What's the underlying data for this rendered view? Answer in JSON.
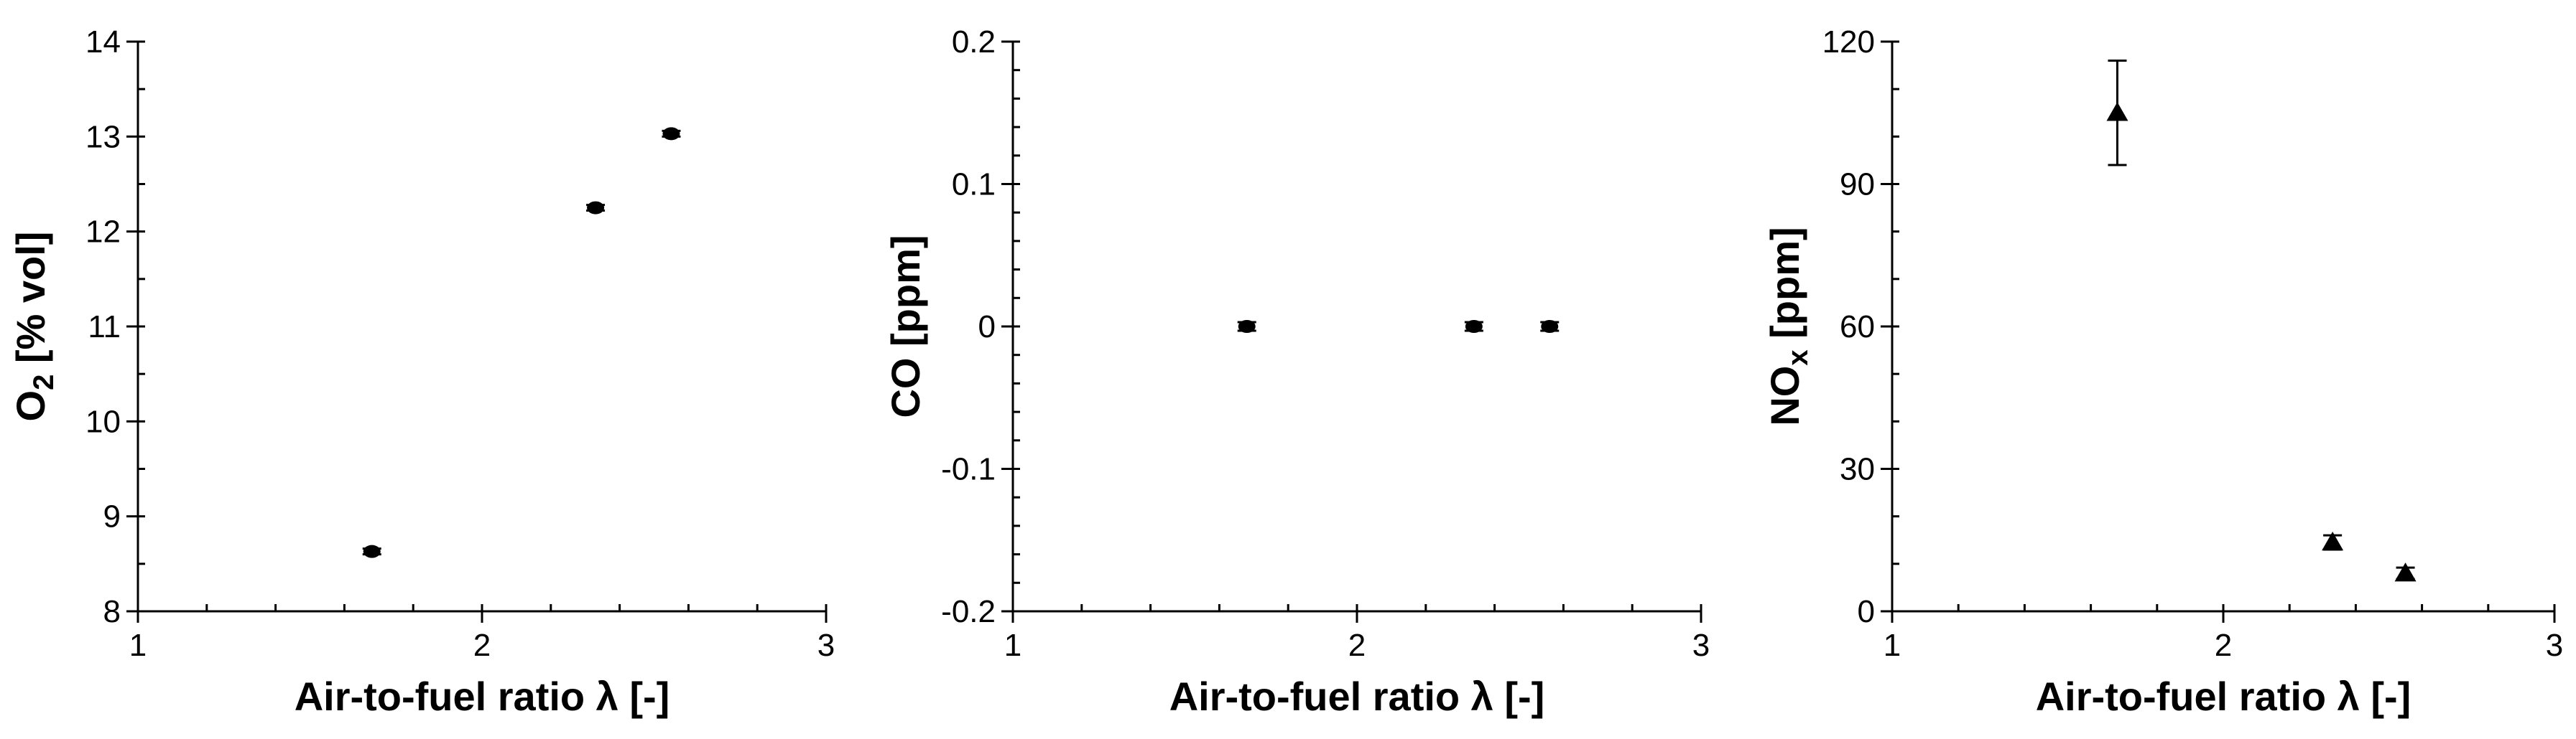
{
  "chart_data": [
    {
      "type": "scatter",
      "x_label": "Air-to-fuel ratio λ [-]",
      "y_label_main": "O",
      "y_label_sub": "2",
      "y_label_rest": " [% vol]",
      "xlim": [
        1,
        3
      ],
      "ylim": [
        8,
        14
      ],
      "x_ticks": [
        1,
        2,
        3
      ],
      "x_tick_labels": [
        "1",
        "2",
        "3"
      ],
      "y_ticks": [
        8,
        9,
        10,
        11,
        12,
        13,
        14
      ],
      "y_tick_labels": [
        "8",
        "9",
        "10",
        "11",
        "12",
        "13",
        "14"
      ],
      "x_minor_step": 0.2,
      "y_minor_step": 0.5,
      "marker": "circle",
      "grid": false,
      "points": [
        {
          "x": 1.68,
          "y": 8.63,
          "err": 0.03
        },
        {
          "x": 2.33,
          "y": 12.25,
          "err": 0.03
        },
        {
          "x": 2.55,
          "y": 13.03,
          "err": 0.03
        }
      ]
    },
    {
      "type": "scatter",
      "x_label": "Air-to-fuel ratio λ [-]",
      "y_label_main": "CO [ppm]",
      "y_label_sub": "",
      "y_label_rest": "",
      "xlim": [
        1,
        3
      ],
      "ylim": [
        -0.2,
        0.2
      ],
      "x_ticks": [
        1,
        2,
        3
      ],
      "x_tick_labels": [
        "1",
        "2",
        "3"
      ],
      "y_ticks": [
        -0.2,
        -0.1,
        0,
        0.1,
        0.2
      ],
      "y_tick_labels": [
        "-0.2",
        "-0.1",
        "0",
        "0.1",
        "0.2"
      ],
      "x_minor_step": 0.2,
      "y_minor_step": 0.02,
      "marker": "circle",
      "grid": false,
      "points": [
        {
          "x": 1.68,
          "y": 0,
          "err": 0.003
        },
        {
          "x": 2.34,
          "y": 0,
          "err": 0.003
        },
        {
          "x": 2.56,
          "y": 0,
          "err": 0.003
        }
      ]
    },
    {
      "type": "scatter",
      "x_label": "Air-to-fuel ratio λ [-]",
      "y_label_main": "NO",
      "y_label_sub": "x",
      "y_label_rest": " [ppm]",
      "xlim": [
        1,
        3
      ],
      "ylim": [
        0,
        120
      ],
      "x_ticks": [
        1,
        2,
        3
      ],
      "x_tick_labels": [
        "1",
        "2",
        "3"
      ],
      "y_ticks": [
        0,
        30,
        60,
        90,
        120
      ],
      "y_tick_labels": [
        "0",
        "30",
        "60",
        "90",
        "120"
      ],
      "x_minor_step": 0.2,
      "y_minor_step": 10,
      "marker": "triangle",
      "grid": false,
      "points": [
        {
          "x": 1.68,
          "y": 105,
          "err": 11
        },
        {
          "x": 2.33,
          "y": 14.5,
          "err": 1.5
        },
        {
          "x": 2.55,
          "y": 8,
          "err": 1.2
        }
      ]
    }
  ]
}
